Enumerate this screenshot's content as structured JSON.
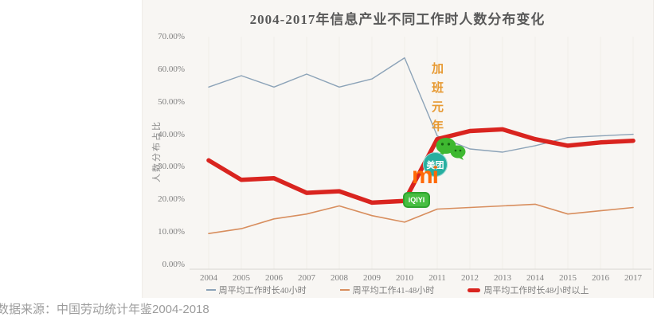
{
  "title": "2004-2017年信息产业不同工作时人数分布变化",
  "source_note": "数据来源：中国劳动统计年鉴2004-2018",
  "annotation": {
    "text": "加班元年",
    "near_year": 2011
  },
  "logos": {
    "wechat_label": "",
    "meituan_label": "美团",
    "xiaomi_label": "mi",
    "iqiyi_label": "iQIYI"
  },
  "colors": {
    "title_gray": "#595959",
    "tick_gray": "#7f7f7f",
    "annotation_gold": "#e79a33",
    "wechat_green": "#3eb830",
    "wechat_eye_dark": "#156311",
    "meituan_teal": "#27afa0",
    "xiaomi_orange": "#ff6906",
    "iqiyi_green": "#46be41",
    "iqiyi_border": "#2fa32f",
    "panel_bg": "#f8f6f3",
    "grid_line": "#f0ede8",
    "axis_line": "#d9d6d2"
  },
  "chart_data": {
    "type": "line",
    "title": "2004-2017年信息产业不同工作时人数分布变化",
    "xlabel": "",
    "ylabel": "人数分布占比",
    "unit": "%",
    "x": [
      2004,
      2005,
      2006,
      2007,
      2008,
      2009,
      2010,
      2011,
      2012,
      2013,
      2014,
      2015,
      2016,
      2017
    ],
    "ylim": [
      0,
      70
    ],
    "ytick_labels": [
      "0.00%",
      "10.00%",
      "20.00%",
      "30.00%",
      "40.00%",
      "50.00%",
      "60.00%",
      "70.00%"
    ],
    "grid": "faint vertical gridlines at each year",
    "legend_position": "bottom",
    "series": [
      {
        "name": "周平均工作时长40小时",
        "color": "#8ca3b8",
        "line_width": 1.4,
        "values": [
          54.5,
          58,
          54.5,
          58.5,
          54.5,
          57,
          63.5,
          39.5,
          35.5,
          34.5,
          36.5,
          39,
          39.5,
          40
        ]
      },
      {
        "name": "周平均工作41-48小时",
        "color": "#d88e5e",
        "line_width": 1.6,
        "values": [
          9.5,
          11,
          14,
          15.5,
          18,
          15,
          13,
          17,
          17.5,
          18,
          18.5,
          15.5,
          16.5,
          17.5
        ]
      },
      {
        "name": "周平均工作时长48小时以上",
        "color": "#d9241f",
        "line_width": 5.5,
        "values": [
          32,
          26,
          26.5,
          22,
          22.5,
          19,
          19.5,
          38.5,
          41,
          41.5,
          38.5,
          36.5,
          37.5,
          38
        ]
      }
    ]
  }
}
